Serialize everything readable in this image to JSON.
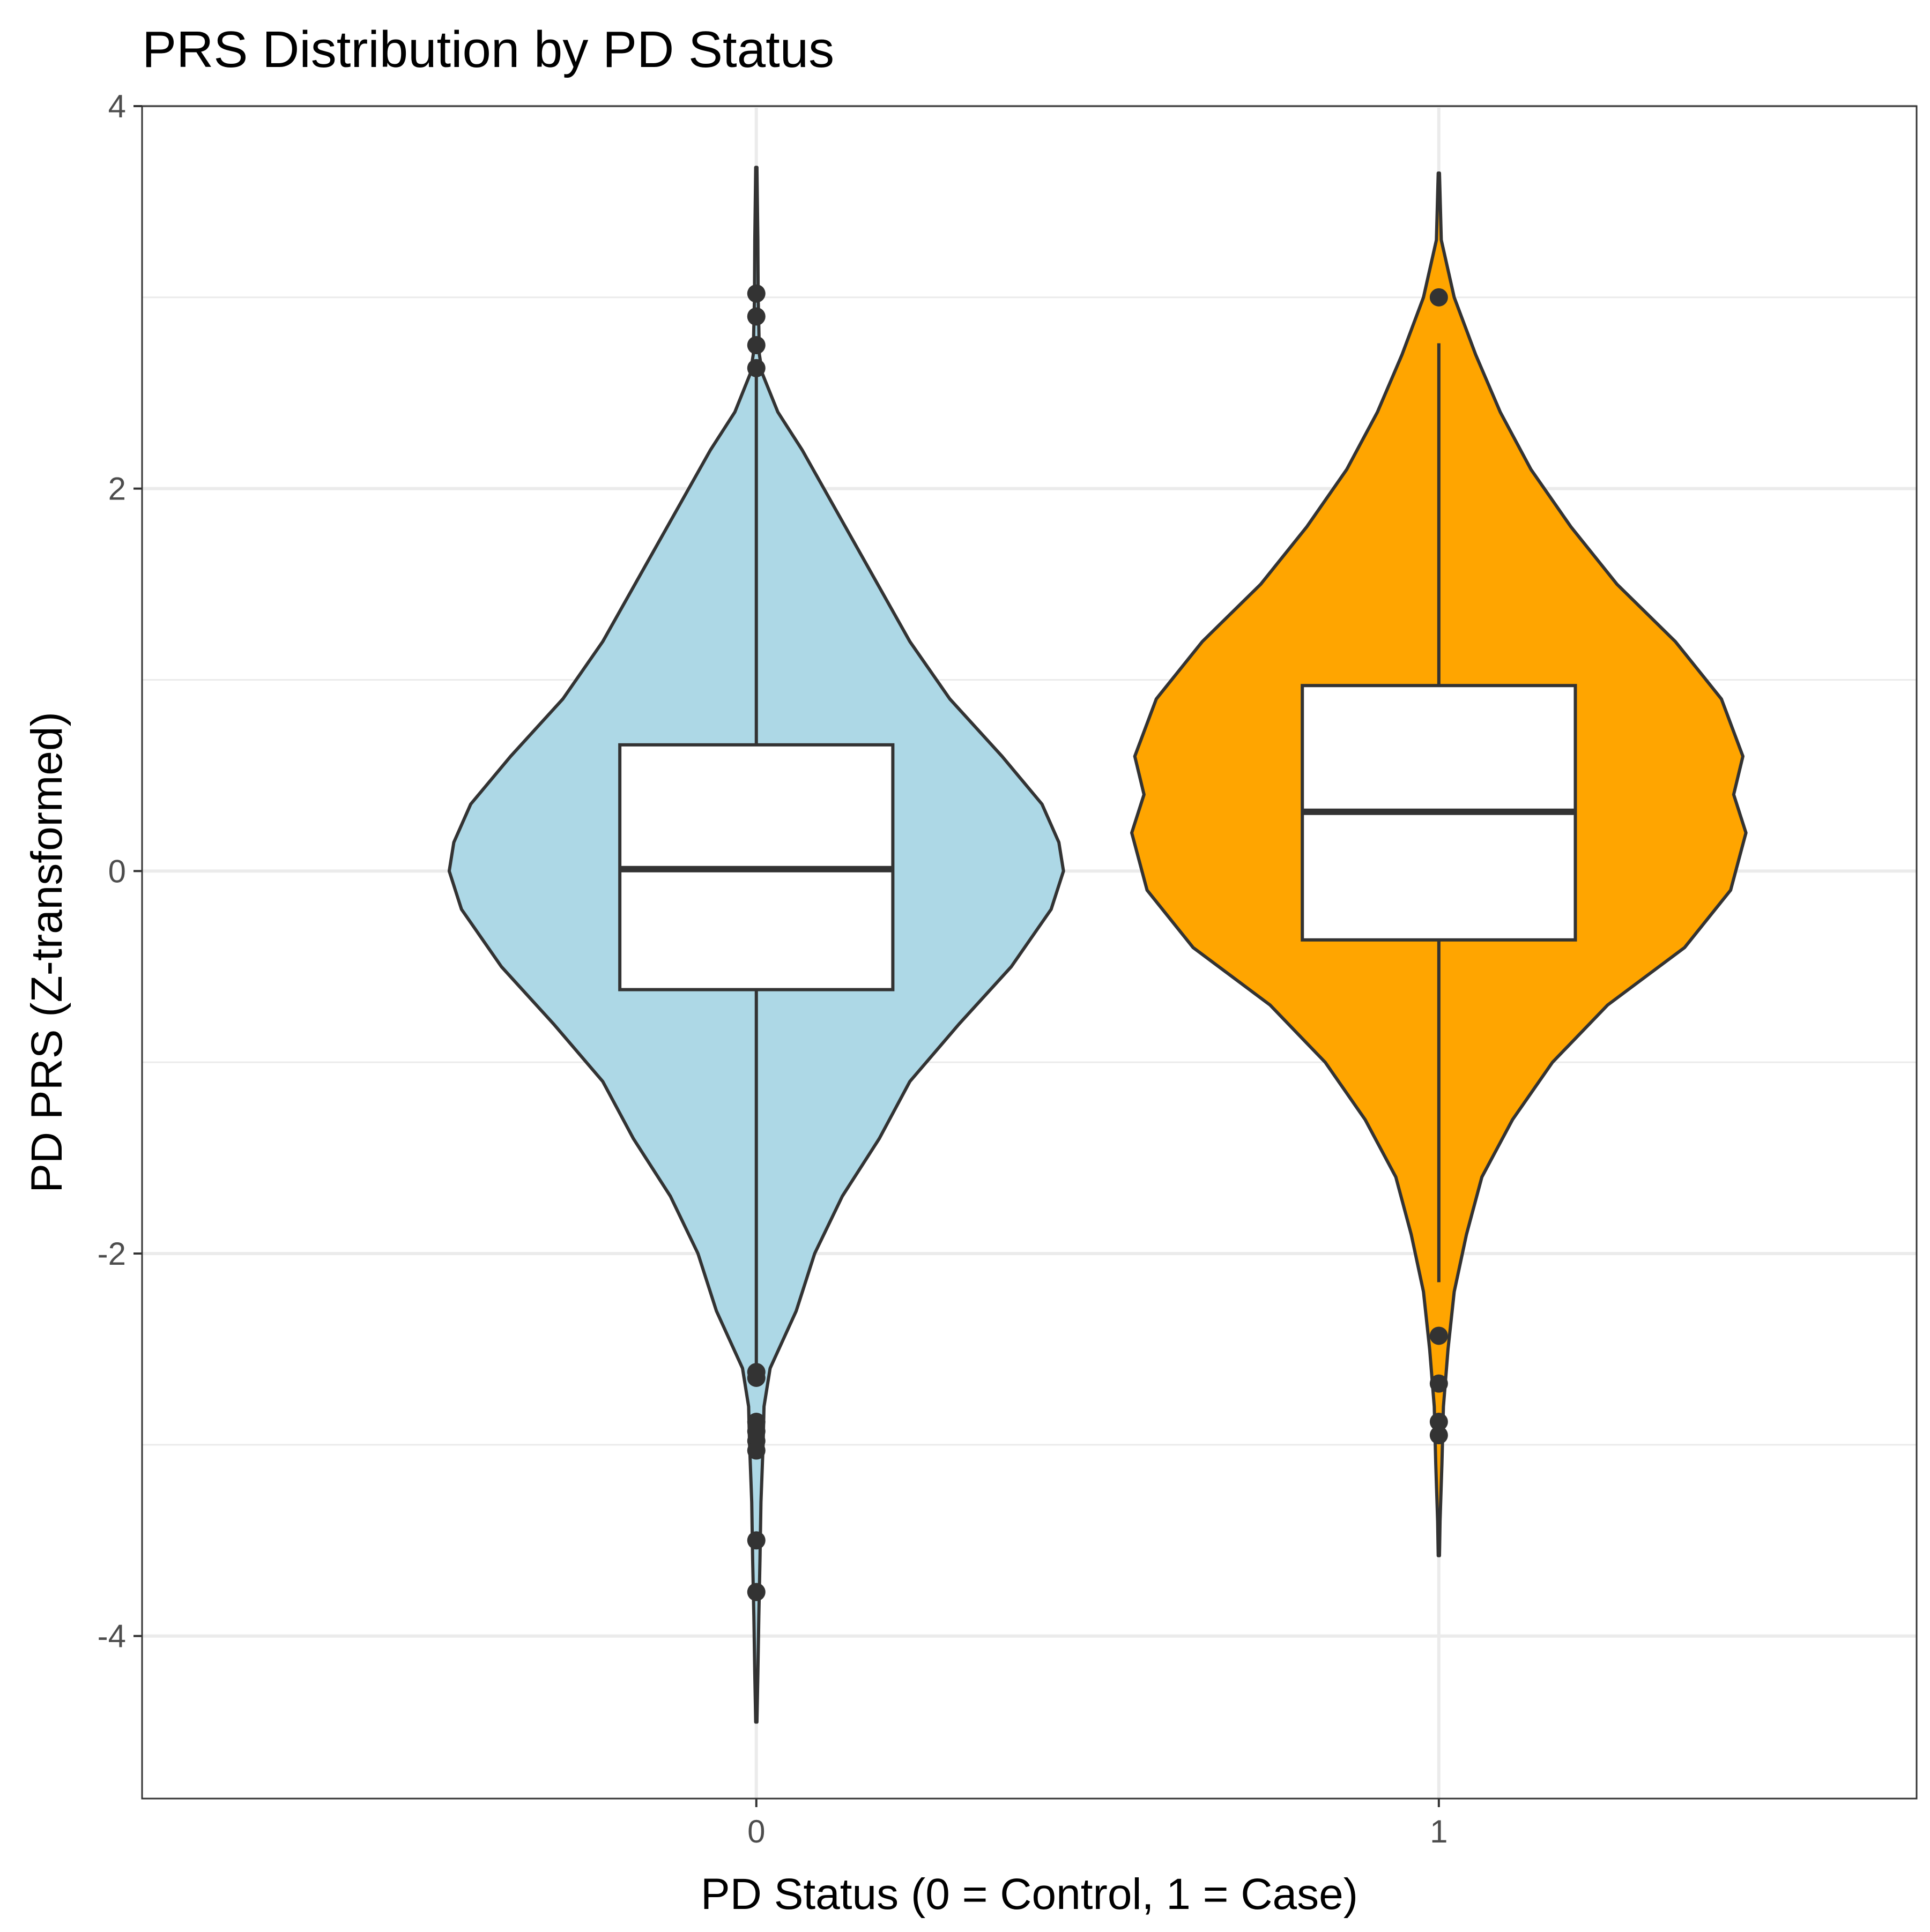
{
  "chart_data": {
    "type": "violin",
    "title": "PRS Distribution by PD Status",
    "xlabel": "PD Status (0 = Control, 1 = Case)",
    "ylabel": "PD PRS (Z-transformed)",
    "ylim": [
      -4.85,
      4.0
    ],
    "y_ticks": [
      -4,
      -2,
      0,
      2,
      4
    ],
    "y_tick_labels": [
      "-4",
      "-2",
      "0",
      "2",
      "4"
    ],
    "grid": true,
    "categories": [
      "0",
      "1"
    ],
    "groups": [
      {
        "category": "0",
        "fill": "#ADD8E6",
        "violin_min": -4.45,
        "violin_max": 3.68,
        "density_profile": [
          [
            3.68,
            0.002
          ],
          [
            3.3,
            0.005
          ],
          [
            3.0,
            0.006
          ],
          [
            2.7,
            0.01
          ],
          [
            2.6,
            0.02
          ],
          [
            2.4,
            0.07
          ],
          [
            2.2,
            0.15
          ],
          [
            2.0,
            0.22
          ],
          [
            1.6,
            0.36
          ],
          [
            1.2,
            0.5
          ],
          [
            0.9,
            0.63
          ],
          [
            0.6,
            0.8
          ],
          [
            0.35,
            0.93
          ],
          [
            0.15,
            0.985
          ],
          [
            0.0,
            1.0
          ],
          [
            -0.2,
            0.96
          ],
          [
            -0.5,
            0.83
          ],
          [
            -0.8,
            0.66
          ],
          [
            -1.1,
            0.5
          ],
          [
            -1.4,
            0.4
          ],
          [
            -1.7,
            0.28
          ],
          [
            -2.0,
            0.19
          ],
          [
            -2.3,
            0.13
          ],
          [
            -2.6,
            0.045
          ],
          [
            -2.8,
            0.025
          ],
          [
            -3.0,
            0.022
          ],
          [
            -3.3,
            0.015
          ],
          [
            -3.6,
            0.012
          ],
          [
            -3.9,
            0.008
          ],
          [
            -4.2,
            0.005
          ],
          [
            -4.45,
            0.002
          ]
        ],
        "box": {
          "q1": -0.62,
          "median": 0.01,
          "q3": 0.66,
          "whisker_low": -2.58,
          "whisker_high": 2.6
        },
        "outliers": [
          3.02,
          2.9,
          2.75,
          2.63,
          -2.62,
          -2.65,
          -2.88,
          -2.93,
          -2.98,
          -3.03,
          -3.5,
          -3.77
        ]
      },
      {
        "category": "1",
        "fill": "#FFA500",
        "violin_min": -3.58,
        "violin_max": 3.65,
        "density_profile": [
          [
            3.65,
            0.002
          ],
          [
            3.3,
            0.008
          ],
          [
            3.0,
            0.05
          ],
          [
            2.7,
            0.12
          ],
          [
            2.4,
            0.2
          ],
          [
            2.1,
            0.3
          ],
          [
            1.8,
            0.43
          ],
          [
            1.5,
            0.58
          ],
          [
            1.2,
            0.77
          ],
          [
            0.9,
            0.92
          ],
          [
            0.6,
            0.99
          ],
          [
            0.4,
            0.96
          ],
          [
            0.2,
            1.0
          ],
          [
            -0.1,
            0.95
          ],
          [
            -0.4,
            0.8
          ],
          [
            -0.7,
            0.55
          ],
          [
            -1.0,
            0.37
          ],
          [
            -1.3,
            0.24
          ],
          [
            -1.6,
            0.14
          ],
          [
            -1.9,
            0.09
          ],
          [
            -2.2,
            0.05
          ],
          [
            -2.5,
            0.03
          ],
          [
            -2.8,
            0.015
          ],
          [
            -3.1,
            0.01
          ],
          [
            -3.4,
            0.004
          ],
          [
            -3.58,
            0.002
          ]
        ],
        "box": {
          "q1": -0.36,
          "median": 0.31,
          "q3": 0.97,
          "whisker_low": -2.15,
          "whisker_high": 2.76
        },
        "outliers": [
          3.0,
          -2.43,
          -2.68,
          -2.88,
          -2.95
        ]
      }
    ]
  }
}
